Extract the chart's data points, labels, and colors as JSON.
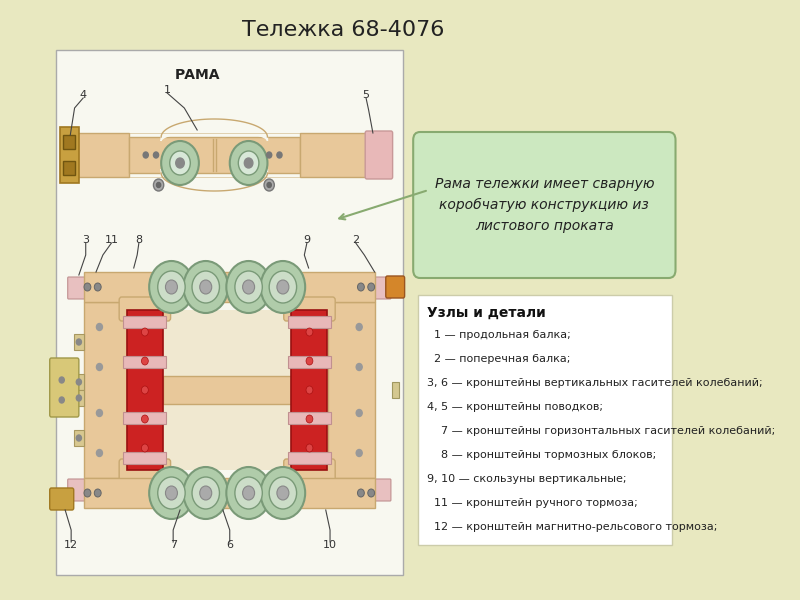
{
  "title": "Тележка 68-4076",
  "title_fontsize": 16,
  "bg_color": "#e8e8c0",
  "panel_color": "#f8f8f0",
  "frame_tan": "#e8c89a",
  "frame_tan_dark": "#c8a870",
  "frame_tan_light": "#f0dbb8",
  "red_beam": "#cc2222",
  "red_beam_dark": "#991111",
  "green_circle": "#b0ccaa",
  "green_circle_dark": "#7a9a78",
  "pink_bracket": "#e8b8b8",
  "pink_bracket_dark": "#c89898",
  "gold_piece": "#c8a040",
  "gold_piece_dark": "#a07820",
  "orange_piece": "#d4862a",
  "callout_bg": "#cce8c0",
  "callout_border": "#88aa70",
  "parts_bg": "#ffffff",
  "parts_border": "#ccccaa",
  "callout_text": "Рама тележки имеет сварную\nкоробчатую конструкцию из\nлистового проката",
  "parts_title": "Узлы и детали",
  "parts_list": [
    "  1 — продольная балка;",
    "  2 — поперечная балка;",
    "3, 6 — кронштейны вертикальных гасителей колебаний;",
    "4, 5 — кронштейны поводков;",
    "    7 — кронштейны горизонтальных гасителей колебаний;",
    "    8 — кронштейны тормозных блоков;",
    "9, 10 — скользуны вертикальные;",
    "  11 — кронштейн ручного тормоза;",
    "  12 — кронштейн магнитно-рельсового тормоза;"
  ],
  "rama_label": "РАМА"
}
